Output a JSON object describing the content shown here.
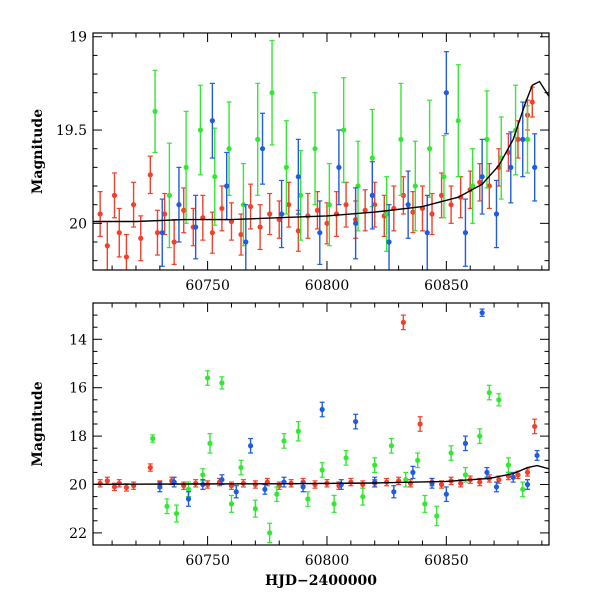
{
  "colors": {
    "green": "#33e833",
    "blue": "#1f5ce0",
    "red": "#f2402a",
    "model": "#000000"
  },
  "chart_data": [
    {
      "type": "scatter",
      "panel": "top",
      "xlabel": "",
      "ylabel": "Magnitude",
      "xlim": [
        60702,
        60893
      ],
      "ylim": [
        20.25,
        18.98
      ],
      "y_inverted": true,
      "xticks": [
        60750,
        60800,
        60850
      ],
      "xtick_labels": [
        "60750",
        "60800",
        "60850"
      ],
      "yticks": [
        19,
        19.5,
        20
      ],
      "ytick_labels": [
        "19",
        "19.5",
        "20"
      ],
      "grid": false,
      "legend": "none",
      "model_curve": {
        "x": [
          60702,
          60720,
          60740,
          60760,
          60780,
          60800,
          60820,
          60840,
          60855,
          60865,
          60872,
          60878,
          60883,
          60886,
          60889,
          60893
        ],
        "y": [
          19.99,
          19.99,
          19.98,
          19.98,
          19.97,
          19.96,
          19.94,
          19.91,
          19.86,
          19.79,
          19.69,
          19.55,
          19.36,
          19.26,
          19.24,
          19.32
        ]
      },
      "series": [
        {
          "color": "red",
          "x": [
            60705,
            60708,
            60711,
            60713,
            60716,
            60719,
            60722,
            60726,
            60729,
            60732,
            60736,
            60740,
            60744,
            60748,
            60752,
            60756,
            60760,
            60764,
            60768,
            60772,
            60776,
            60780,
            60784,
            60788,
            60792,
            60796,
            60800,
            60804,
            60808,
            60812,
            60816,
            60820,
            60824,
            60828,
            60832,
            60836,
            60840,
            60844,
            60848,
            60852,
            60856,
            60860,
            60864,
            60868,
            60872,
            60876,
            60880,
            60884,
            60886
          ],
          "y": [
            19.95,
            20.12,
            19.85,
            20.05,
            20.18,
            19.9,
            20.08,
            19.74,
            20.05,
            19.95,
            20.1,
            19.93,
            20.02,
            19.97,
            20.05,
            19.92,
            19.99,
            20.06,
            19.91,
            20.02,
            19.95,
            19.98,
            19.9,
            20.04,
            19.96,
            19.93,
            20.0,
            19.95,
            19.9,
            19.98,
            19.93,
            19.9,
            19.96,
            19.92,
            19.85,
            19.94,
            19.92,
            19.95,
            19.85,
            19.9,
            19.86,
            19.82,
            19.78,
            19.8,
            19.7,
            19.62,
            19.55,
            19.42,
            19.35
          ],
          "err": [
            0.12,
            0.13,
            0.12,
            0.13,
            0.12,
            0.12,
            0.12,
            0.1,
            0.12,
            0.11,
            0.12,
            0.12,
            0.1,
            0.12,
            0.11,
            0.12,
            0.1,
            0.11,
            0.12,
            0.12,
            0.11,
            0.1,
            0.12,
            0.11,
            0.12,
            0.1,
            0.11,
            0.12,
            0.12,
            0.1,
            0.11,
            0.12,
            0.11,
            0.12,
            0.1,
            0.11,
            0.12,
            0.11,
            0.12,
            0.1,
            0.11,
            0.1,
            0.1,
            0.12,
            0.1,
            0.1,
            0.1,
            0.08,
            0.08
          ]
        },
        {
          "color": "green",
          "x": [
            60728,
            60734,
            60741,
            60747,
            60753,
            60759,
            60765,
            60771,
            60777,
            60783,
            60789,
            60795,
            60801,
            60807,
            60813,
            60819,
            60825,
            60831,
            60837,
            60843,
            60849,
            60855,
            60861,
            60867,
            60873,
            60879,
            60884
          ],
          "y": [
            19.4,
            19.85,
            19.7,
            19.5,
            19.75,
            19.6,
            19.9,
            19.55,
            19.3,
            19.7,
            19.85,
            19.6,
            19.9,
            19.5,
            19.8,
            19.65,
            19.95,
            19.55,
            19.8,
            19.6,
            19.75,
            19.45,
            19.8,
            19.55,
            19.65,
            19.5,
            19.55
          ],
          "err": [
            0.22,
            0.28,
            0.3,
            0.24,
            0.26,
            0.25,
            0.22,
            0.3,
            0.28,
            0.25,
            0.24,
            0.3,
            0.22,
            0.28,
            0.24,
            0.26,
            0.2,
            0.3,
            0.24,
            0.26,
            0.22,
            0.3,
            0.2,
            0.26,
            0.22,
            0.24,
            0.18
          ]
        },
        {
          "color": "blue",
          "x": [
            60731,
            60738,
            60745,
            60752,
            60758,
            60766,
            60773,
            60781,
            60788,
            60797,
            60805,
            60812,
            60819,
            60826,
            60834,
            60842,
            60850,
            60858,
            60865,
            60871,
            60877,
            60882,
            60887
          ],
          "y": [
            20.05,
            19.9,
            20.02,
            19.45,
            19.8,
            20.1,
            19.6,
            19.95,
            19.75,
            20.05,
            19.7,
            20.0,
            19.85,
            20.1,
            19.9,
            20.05,
            19.3,
            20.05,
            19.75,
            19.95,
            19.7,
            19.55,
            19.7
          ],
          "err": [
            0.18,
            0.2,
            0.17,
            0.2,
            0.18,
            0.2,
            0.19,
            0.18,
            0.2,
            0.17,
            0.2,
            0.19,
            0.18,
            0.2,
            0.18,
            0.2,
            0.22,
            0.18,
            0.2,
            0.18,
            0.19,
            0.2,
            0.18
          ]
        }
      ]
    },
    {
      "type": "scatter",
      "panel": "bottom",
      "xlabel": "HJD−2400000",
      "ylabel": "Magnitude",
      "xlim": [
        60702,
        60893
      ],
      "ylim": [
        22.5,
        12.5
      ],
      "y_inverted": true,
      "xticks": [
        60750,
        60800,
        60850
      ],
      "xtick_labels": [
        "60750",
        "60800",
        "60850"
      ],
      "yticks": [
        14,
        16,
        18,
        20,
        22
      ],
      "ytick_labels": [
        "14",
        "16",
        "18",
        "20",
        "22"
      ],
      "grid": false,
      "legend": "none",
      "model_curve": {
        "x": [
          60702,
          60740,
          60780,
          60820,
          60850,
          60868,
          60878,
          60884,
          60888,
          60893
        ],
        "y": [
          19.99,
          19.98,
          19.97,
          19.94,
          19.87,
          19.75,
          19.55,
          19.3,
          19.22,
          19.35
        ]
      },
      "series": [
        {
          "color": "red",
          "x": [
            60705,
            60708,
            60711,
            60713,
            60716,
            60719,
            60726,
            60730,
            60735,
            60740,
            60745,
            60750,
            60755,
            60760,
            60765,
            60770,
            60775,
            60780,
            60785,
            60790,
            60795,
            60800,
            60805,
            60810,
            60815,
            60820,
            60825,
            60830,
            60832,
            60835,
            60839,
            60844,
            60848,
            60852,
            60856,
            60860,
            60864,
            60868,
            60872,
            60876,
            60880,
            60884,
            60887
          ],
          "y": [
            19.95,
            19.85,
            20.1,
            19.95,
            20.12,
            20.05,
            19.3,
            20.0,
            19.85,
            20.05,
            19.95,
            20.0,
            19.9,
            20.05,
            19.95,
            20.0,
            19.9,
            20.05,
            19.95,
            19.9,
            20.0,
            19.95,
            20.05,
            19.9,
            20.0,
            19.95,
            19.9,
            19.85,
            13.3,
            19.95,
            17.5,
            19.9,
            20.0,
            19.85,
            19.95,
            19.8,
            19.9,
            19.75,
            19.8,
            19.65,
            19.6,
            19.5,
            17.6
          ],
          "err": [
            0.15,
            0.15,
            0.15,
            0.15,
            0.15,
            0.15,
            0.15,
            0.15,
            0.15,
            0.15,
            0.15,
            0.15,
            0.15,
            0.15,
            0.15,
            0.15,
            0.15,
            0.15,
            0.15,
            0.15,
            0.15,
            0.15,
            0.15,
            0.15,
            0.15,
            0.15,
            0.15,
            0.15,
            0.3,
            0.15,
            0.3,
            0.15,
            0.15,
            0.15,
            0.15,
            0.15,
            0.15,
            0.15,
            0.15,
            0.15,
            0.15,
            0.15,
            0.3
          ]
        },
        {
          "color": "green",
          "x": [
            60727,
            60733,
            60737,
            60742,
            60748,
            60750,
            60751,
            60756,
            60760,
            60764,
            60770,
            60776,
            60779,
            60782,
            60788,
            60792,
            60798,
            60803,
            60808,
            60815,
            60820,
            60827,
            60833,
            60838,
            60841,
            60846,
            60852,
            60858,
            60864,
            60868,
            60872,
            60876,
            60882
          ],
          "y": [
            18.1,
            20.9,
            21.2,
            20.2,
            19.6,
            15.6,
            18.3,
            15.8,
            20.8,
            19.3,
            21.0,
            22.0,
            20.4,
            18.2,
            17.8,
            20.6,
            19.4,
            20.8,
            18.9,
            20.5,
            19.2,
            18.4,
            19.8,
            19.0,
            20.8,
            21.3,
            18.7,
            19.6,
            18.0,
            16.2,
            16.5,
            19.2,
            20.2
          ],
          "err": [
            0.15,
            0.3,
            0.35,
            0.3,
            0.25,
            0.3,
            0.4,
            0.25,
            0.35,
            0.3,
            0.35,
            0.4,
            0.3,
            0.3,
            0.4,
            0.3,
            0.3,
            0.35,
            0.3,
            0.35,
            0.3,
            0.3,
            0.3,
            0.3,
            0.35,
            0.4,
            0.3,
            0.3,
            0.3,
            0.3,
            0.25,
            0.3,
            0.3
          ]
        },
        {
          "color": "blue",
          "x": [
            60730,
            60736,
            60742,
            60748,
            60756,
            60762,
            60768,
            60774,
            60782,
            60790,
            60798,
            60806,
            60812,
            60820,
            60828,
            60836,
            60844,
            60850,
            60858,
            60865,
            60867,
            60871,
            60878,
            60884,
            60888
          ],
          "y": [
            20.1,
            19.9,
            20.6,
            20.0,
            19.8,
            20.3,
            18.4,
            20.2,
            19.9,
            20.1,
            16.9,
            20.0,
            17.4,
            19.9,
            20.3,
            19.5,
            19.95,
            20.4,
            18.3,
            12.9,
            19.5,
            20.1,
            19.7,
            20.0,
            18.8
          ],
          "err": [
            0.2,
            0.2,
            0.3,
            0.2,
            0.2,
            0.25,
            0.3,
            0.2,
            0.2,
            0.2,
            0.3,
            0.2,
            0.3,
            0.2,
            0.25,
            0.25,
            0.2,
            0.3,
            0.3,
            0.15,
            0.2,
            0.2,
            0.2,
            0.2,
            0.2
          ]
        }
      ]
    }
  ]
}
